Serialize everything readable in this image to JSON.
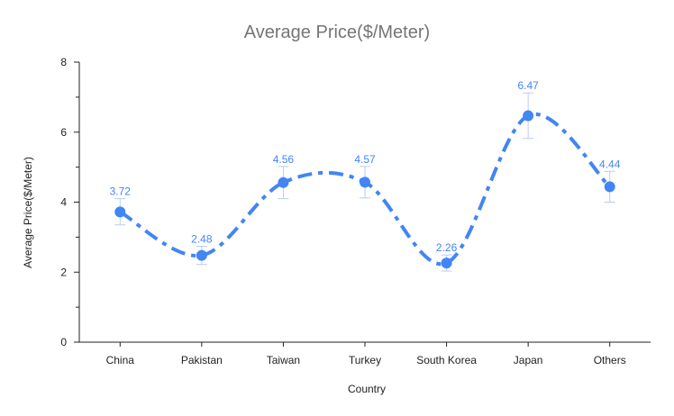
{
  "chart_data": {
    "type": "line",
    "title": "Average Price($/Meter)",
    "xlabel": "Country",
    "ylabel": "Average Price($/Meter)",
    "categories": [
      "China",
      "Pakistan",
      "Taiwan",
      "Turkey",
      "South Korea",
      "Japan",
      "Others"
    ],
    "series": [
      {
        "values": [
          3.72,
          2.48,
          4.56,
          4.57,
          2.26,
          6.47,
          4.44
        ],
        "error_low": [
          3.35,
          2.22,
          4.1,
          4.12,
          2.03,
          5.82,
          4.0
        ],
        "error_high": [
          4.1,
          2.74,
          5.02,
          5.02,
          2.49,
          7.12,
          4.88
        ],
        "color": "#4285f4",
        "line_style": "dash-dot",
        "smooth": true,
        "data_labels": [
          "3.72",
          "2.48",
          "4.56",
          "4.57",
          "2.26",
          "6.47",
          "4.44"
        ]
      }
    ],
    "ylim": [
      0,
      8
    ],
    "yticks": [
      0,
      2,
      4,
      6,
      8
    ],
    "grid": false,
    "error_bar_color": "#b7cdf2"
  }
}
